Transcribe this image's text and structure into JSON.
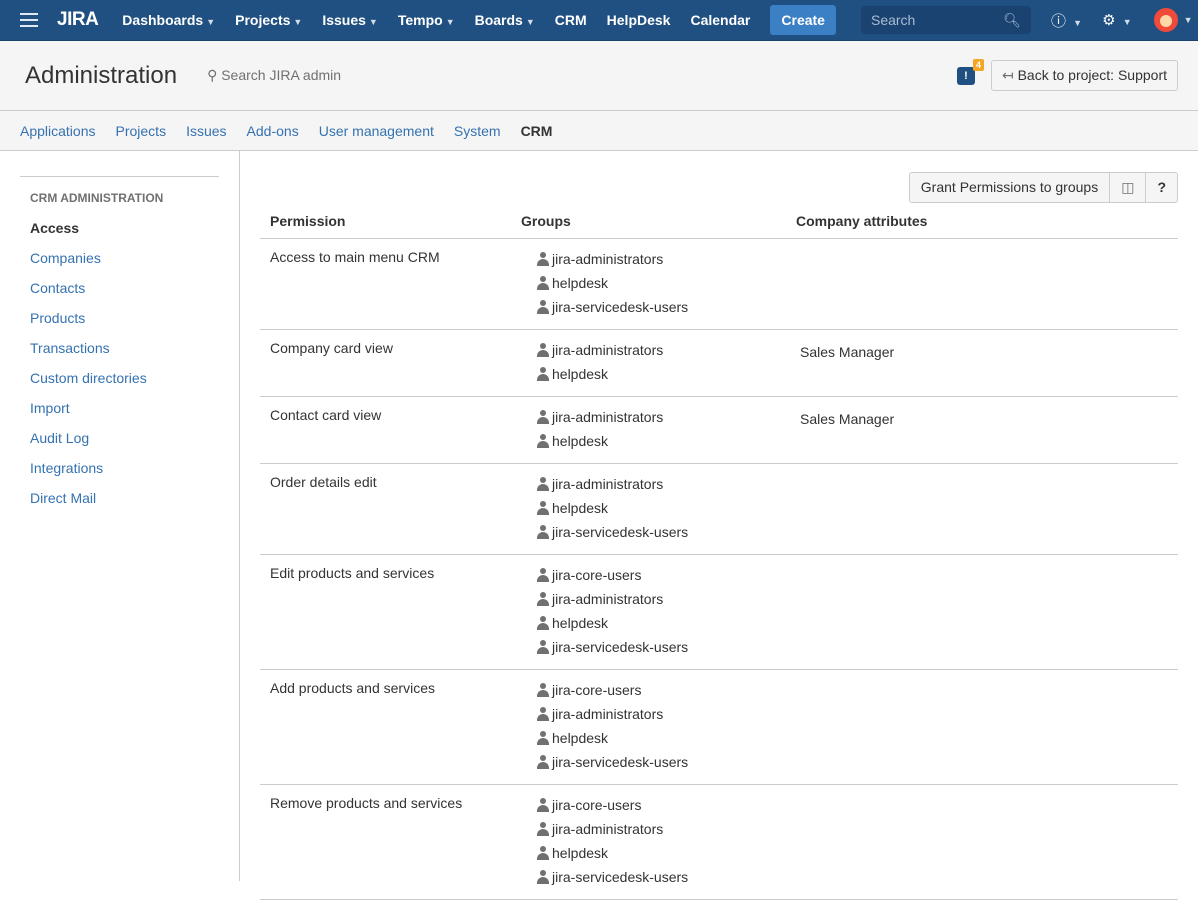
{
  "topbar": {
    "logo": "JIRA",
    "nav": [
      {
        "label": "Dashboards",
        "dropdown": true
      },
      {
        "label": "Projects",
        "dropdown": true
      },
      {
        "label": "Issues",
        "dropdown": true
      },
      {
        "label": "Tempo",
        "dropdown": true
      },
      {
        "label": "Boards",
        "dropdown": true
      },
      {
        "label": "CRM",
        "dropdown": false
      },
      {
        "label": "HelpDesk",
        "dropdown": false
      },
      {
        "label": "Calendar",
        "dropdown": false
      }
    ],
    "create": "Create",
    "search_placeholder": "Search"
  },
  "header": {
    "title": "Administration",
    "search": "Search JIRA admin",
    "notif_count": "4",
    "back": "Back to project: Support"
  },
  "tabs": [
    "Applications",
    "Projects",
    "Issues",
    "Add-ons",
    "User management",
    "System",
    "CRM"
  ],
  "active_tab": "CRM",
  "sidebar": {
    "heading": "CRM ADMINISTRATION",
    "items": [
      "Access",
      "Companies",
      "Contacts",
      "Products",
      "Transactions",
      "Custom directories",
      "Import",
      "Audit Log",
      "Integrations",
      "Direct Mail"
    ]
  },
  "toolbar": {
    "grant": "Grant Permissions to groups",
    "help": "?"
  },
  "table": {
    "headers": [
      "Permission",
      "Groups",
      "Company attributes"
    ],
    "rows": [
      {
        "permission": "Access to main menu CRM",
        "groups": [
          "jira-administrators",
          "helpdesk",
          "jira-servicedesk-users"
        ],
        "attr": ""
      },
      {
        "permission": "Company card view",
        "groups": [
          "jira-administrators",
          "helpdesk"
        ],
        "attr": "Sales Manager"
      },
      {
        "permission": "Contact card view",
        "groups": [
          "jira-administrators",
          "helpdesk"
        ],
        "attr": "Sales Manager"
      },
      {
        "permission": "Order details edit",
        "groups": [
          "jira-administrators",
          "helpdesk",
          "jira-servicedesk-users"
        ],
        "attr": ""
      },
      {
        "permission": "Edit products and services",
        "groups": [
          "jira-core-users",
          "jira-administrators",
          "helpdesk",
          "jira-servicedesk-users"
        ],
        "attr": ""
      },
      {
        "permission": "Add products and services",
        "groups": [
          "jira-core-users",
          "jira-administrators",
          "helpdesk",
          "jira-servicedesk-users"
        ],
        "attr": ""
      },
      {
        "permission": "Remove products and services",
        "groups": [
          "jira-core-users",
          "jira-administrators",
          "helpdesk",
          "jira-servicedesk-users"
        ],
        "attr": ""
      }
    ]
  }
}
